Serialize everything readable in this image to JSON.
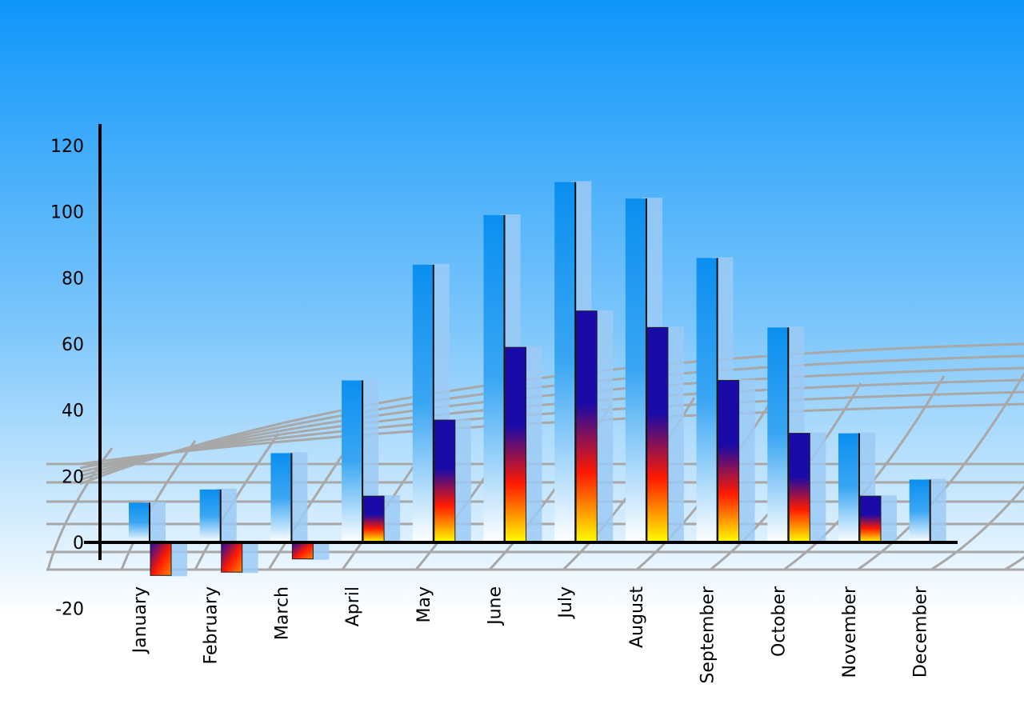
{
  "chart_data": {
    "type": "bar",
    "categories": [
      "January",
      "February",
      "March",
      "April",
      "May",
      "June",
      "July",
      "August",
      "September",
      "October",
      "November",
      "December"
    ],
    "series": [
      {
        "values": [
          12,
          16,
          27,
          49,
          84,
          99,
          109,
          104,
          86,
          65,
          33,
          19
        ]
      },
      {
        "values": [
          -10,
          -9,
          -5,
          14,
          37,
          59,
          70,
          65,
          49,
          33,
          14,
          null
        ]
      }
    ],
    "yticks": [
      "120",
      "100",
      "80",
      "60",
      "40",
      "20",
      "0",
      "-20"
    ],
    "ylim": [
      -20,
      120
    ],
    "title": "",
    "xlabel": "",
    "ylabel": "",
    "grid": false,
    "colors": {
      "background_top": "#0f96fa",
      "background_bottom": "#ffffff",
      "series1_top": "#0a8ff0",
      "series2_top": "#1a0aa8",
      "series2_mid": "#ff1a00",
      "series2_bottom": "#ffff00",
      "shadow": "#9ccaf5",
      "perspective_grid": "#a8a8a8"
    }
  }
}
